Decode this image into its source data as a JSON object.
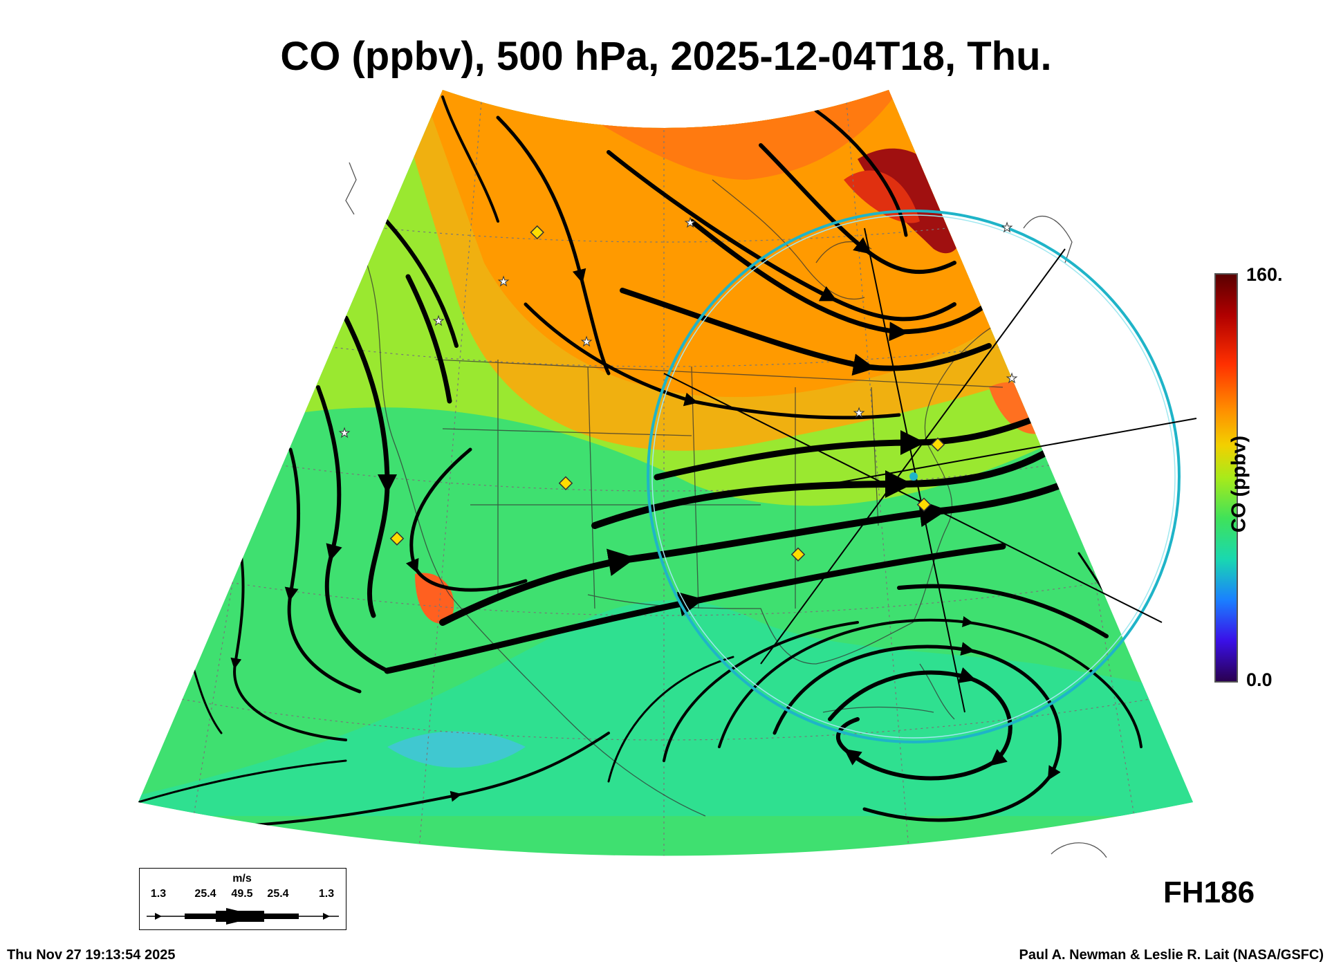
{
  "title": "CO (ppbv), 500 hPa, 2025-12-04T18, Thu.",
  "colorbar": {
    "label": "CO (ppbv)",
    "max_label": "160.",
    "min_label": "0.0",
    "min": 0.0,
    "max": 160,
    "colors": [
      "#2a0050",
      "#3a10e8",
      "#1a80ff",
      "#19d8b0",
      "#3fe25a",
      "#a8ea1a",
      "#f2d000",
      "#ff8c00",
      "#ff3000",
      "#b00000",
      "#5a0000"
    ]
  },
  "forecast_hour": "FH186",
  "wind_legend": {
    "unit": "m/s",
    "values": [
      "1.3",
      "25.4",
      "49.5",
      "25.4",
      "1.3"
    ]
  },
  "timestamp": "Thu Nov 27 19:13:54 2025",
  "credit": "Paul A. Newman & Leslie R. Lait (NASA/GSFC)",
  "map": {
    "projection": "conic",
    "region": "North America",
    "overlays": [
      "streamlines",
      "coastlines",
      "state-boundaries",
      "lat-lon-grid",
      "range-ring",
      "station-markers"
    ],
    "range_ring_color": "#1fb4c8",
    "marker_colors": {
      "diamond": "#ffdd00",
      "star": "#ffffff"
    }
  }
}
